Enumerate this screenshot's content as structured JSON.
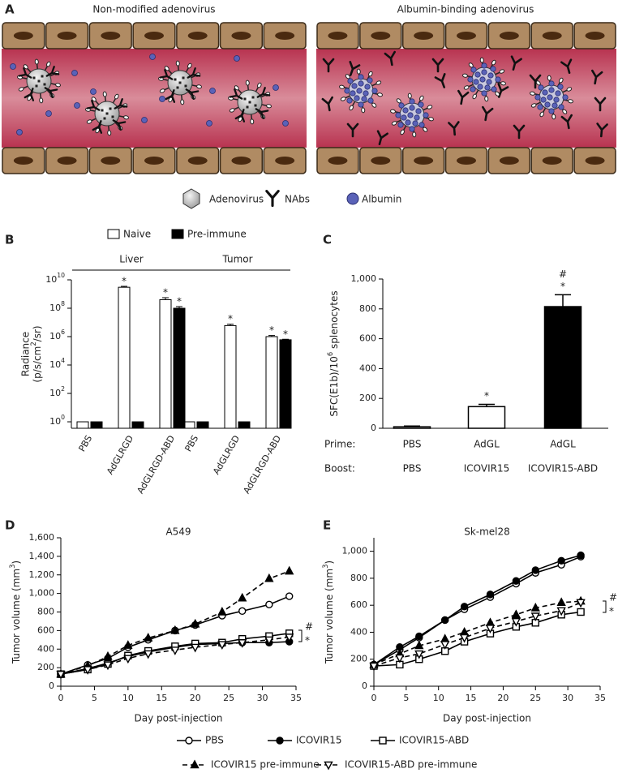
{
  "panel_labels": [
    "A",
    "B",
    "C",
    "D",
    "E"
  ],
  "diagram": {
    "titles": [
      "Non-modified adenovirus",
      "Albumin-binding adenovirus"
    ],
    "legend": [
      "Adenovirus",
      "NAbs",
      "Albumin"
    ]
  },
  "chart_data": [
    {
      "type": "bar",
      "log_scale": true,
      "legend": "top",
      "groups": [
        {
          "label": "Liver",
          "categories": [
            "PBS",
            "AdGLRGD",
            "AdGLRGD-ABD"
          ]
        },
        {
          "label": "Tumor",
          "categories": [
            "PBS",
            "AdGLRGD",
            "AdGLRGD-ABD"
          ]
        }
      ],
      "ylabel": [
        "Radiance",
        "(p/s/cm^2/sr)"
      ],
      "ylim": [
        0.35,
        10000000000
      ],
      "yticks": [
        {
          "value": 1,
          "label": "10^0"
        },
        {
          "value": 100,
          "label": "10^2"
        },
        {
          "value": 10000,
          "label": "10^4"
        },
        {
          "value": 1000000,
          "label": "10^6"
        },
        {
          "value": 100000000,
          "label": "10^8"
        },
        {
          "value": 10000000000,
          "label": "10^10"
        }
      ],
      "series": [
        {
          "name": "Naive",
          "color": "#ffffff",
          "values": [
            1,
            3000000000,
            400000000,
            1,
            6000000,
            1000000
          ],
          "errors": [
            0,
            500000000,
            150000000,
            0,
            1500000,
            200000
          ],
          "annotations": [
            null,
            "*",
            "*",
            null,
            "*",
            "*"
          ]
        },
        {
          "name": "Pre-immune",
          "color": "#000000",
          "values": [
            1,
            1,
            100000000,
            1,
            1,
            600000
          ],
          "errors": [
            0,
            0,
            30000000,
            0,
            0,
            50000
          ],
          "annotations": [
            null,
            null,
            "*",
            null,
            null,
            "*"
          ]
        }
      ]
    },
    {
      "type": "bar",
      "ylabel": "SFC(E1b)/10^6 splenocytes",
      "ylim": [
        0,
        1000
      ],
      "yticks": [
        0,
        200,
        400,
        600,
        800,
        {
          "value": 1000,
          "label": "1,000"
        }
      ],
      "values": [
        10,
        145,
        815
      ],
      "errors": [
        5,
        15,
        80
      ],
      "colors": [
        "#ffffff",
        "#ffffff",
        "#000000"
      ],
      "annotations": [
        null,
        [
          "*"
        ],
        [
          "*",
          "#"
        ]
      ],
      "rows": [
        {
          "label": "Prime:",
          "cells": [
            "PBS",
            "AdGL",
            "AdGL"
          ]
        },
        {
          "label": "Boost:",
          "cells": [
            "PBS",
            "ICOVIR15",
            "ICOVIR15-ABD"
          ]
        }
      ]
    },
    {
      "type": "line",
      "title": "A549",
      "xlabel": "Day post-injection",
      "ylabel": "Tumor volume (mm^3)",
      "xlim": [
        0,
        35
      ],
      "xticks": [
        0,
        5,
        10,
        15,
        20,
        25,
        30,
        35
      ],
      "ylim": [
        0,
        1600
      ],
      "yticks": [
        0,
        200,
        400,
        600,
        800,
        {
          "value": 1000,
          "label": "1,000"
        },
        {
          "value": 1200,
          "label": "1,200"
        },
        {
          "value": 1400,
          "label": "1,400"
        },
        {
          "value": 1600,
          "label": "1,600"
        }
      ],
      "x": [
        0,
        4,
        7,
        10,
        13,
        17,
        20,
        24,
        27,
        31,
        34
      ],
      "series": [
        {
          "name": "PBS",
          "color": "#000000",
          "marker": "circle-open",
          "dash": false,
          "values": [
            130,
            230,
            300,
            420,
            500,
            600,
            660,
            760,
            810,
            880,
            970
          ]
        },
        {
          "name": "ICOVIR15",
          "color": "#000000",
          "marker": "circle",
          "dash": false,
          "values": [
            130,
            190,
            250,
            320,
            370,
            420,
            450,
            460,
            470,
            470,
            480
          ]
        },
        {
          "name": "ICOVIR15-ABD",
          "color": "#000000",
          "marker": "square-open",
          "dash": false,
          "values": [
            130,
            180,
            240,
            330,
            380,
            430,
            460,
            470,
            510,
            540,
            570
          ]
        },
        {
          "name": "ICOVIR15 pre-immune",
          "color": "#000000",
          "marker": "triangle",
          "dash": true,
          "values": [
            130,
            220,
            320,
            440,
            520,
            600,
            670,
            800,
            950,
            1160,
            1240
          ]
        },
        {
          "name": "ICOVIR15-ABD pre-immune",
          "color": "#000000",
          "marker": "triangle-down-open",
          "dash": true,
          "values": [
            130,
            180,
            230,
            300,
            350,
            390,
            420,
            450,
            470,
            500,
            530
          ]
        }
      ],
      "annotations": [
        "#",
        "*"
      ]
    },
    {
      "type": "line",
      "title": "Sk-mel28",
      "xlabel": "Day post-injection",
      "ylabel": "Tumor volume (mm^3)",
      "xlim": [
        0,
        35
      ],
      "xticks": [
        0,
        5,
        10,
        15,
        20,
        25,
        30,
        35
      ],
      "ylim": [
        0,
        1100
      ],
      "yticks": [
        0,
        200,
        400,
        600,
        800,
        {
          "value": 1000,
          "label": "1,000"
        }
      ],
      "x": [
        0,
        4,
        7,
        11,
        14,
        18,
        22,
        25,
        29,
        32
      ],
      "series": [
        {
          "color": "#000000",
          "marker": "circle-open",
          "dash": false,
          "values": [
            160,
            270,
            360,
            490,
            570,
            660,
            760,
            840,
            900,
            960
          ]
        },
        {
          "color": "#000000",
          "marker": "circle",
          "dash": false,
          "values": [
            160,
            290,
            370,
            490,
            590,
            680,
            780,
            860,
            930,
            970
          ]
        },
        {
          "color": "#000000",
          "marker": "square-open",
          "dash": false,
          "values": [
            150,
            160,
            200,
            260,
            330,
            390,
            440,
            470,
            530,
            550
          ]
        },
        {
          "color": "#000000",
          "marker": "triangle",
          "dash": true,
          "values": [
            160,
            240,
            300,
            350,
            400,
            470,
            530,
            580,
            620,
            630
          ]
        },
        {
          "color": "#000000",
          "marker": "triangle-down-open",
          "dash": true,
          "values": [
            150,
            210,
            240,
            310,
            360,
            430,
            480,
            520,
            560,
            620
          ]
        }
      ],
      "annotations": [
        "#",
        "*"
      ]
    }
  ]
}
